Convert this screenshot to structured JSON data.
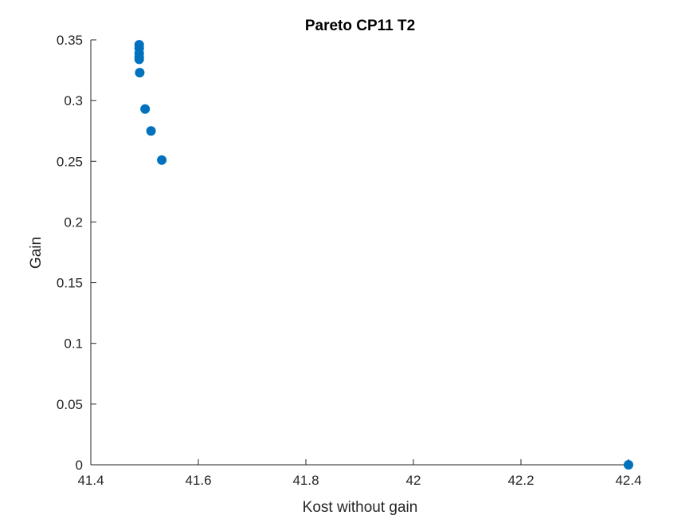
{
  "chart_data": {
    "type": "scatter",
    "title": "Pareto CP11 T2",
    "xlabel": "Kost without gain",
    "ylabel": "Gain",
    "xlim": [
      41.4,
      42.4
    ],
    "ylim": [
      0,
      0.35
    ],
    "xticks": [
      41.4,
      41.6,
      41.8,
      42,
      42.2,
      42.4
    ],
    "xtick_labels": [
      "41.4",
      "41.6",
      "41.8",
      "42",
      "42.2",
      "42.4"
    ],
    "yticks": [
      0,
      0.05,
      0.1,
      0.15,
      0.2,
      0.25,
      0.3,
      0.35
    ],
    "ytick_labels": [
      "0",
      "0.05",
      "0.1",
      "0.15",
      "0.2",
      "0.25",
      "0.3",
      "0.35"
    ],
    "grid": false,
    "marker_color": "#0072BD",
    "axis_color": "#262626",
    "points": [
      {
        "x": 41.49,
        "y": 0.346
      },
      {
        "x": 41.49,
        "y": 0.343
      },
      {
        "x": 41.49,
        "y": 0.339
      },
      {
        "x": 41.49,
        "y": 0.336
      },
      {
        "x": 41.49,
        "y": 0.334
      },
      {
        "x": 41.491,
        "y": 0.323
      },
      {
        "x": 41.501,
        "y": 0.293
      },
      {
        "x": 41.512,
        "y": 0.275
      },
      {
        "x": 41.532,
        "y": 0.251
      },
      {
        "x": 42.4,
        "y": 0.0
      }
    ]
  }
}
